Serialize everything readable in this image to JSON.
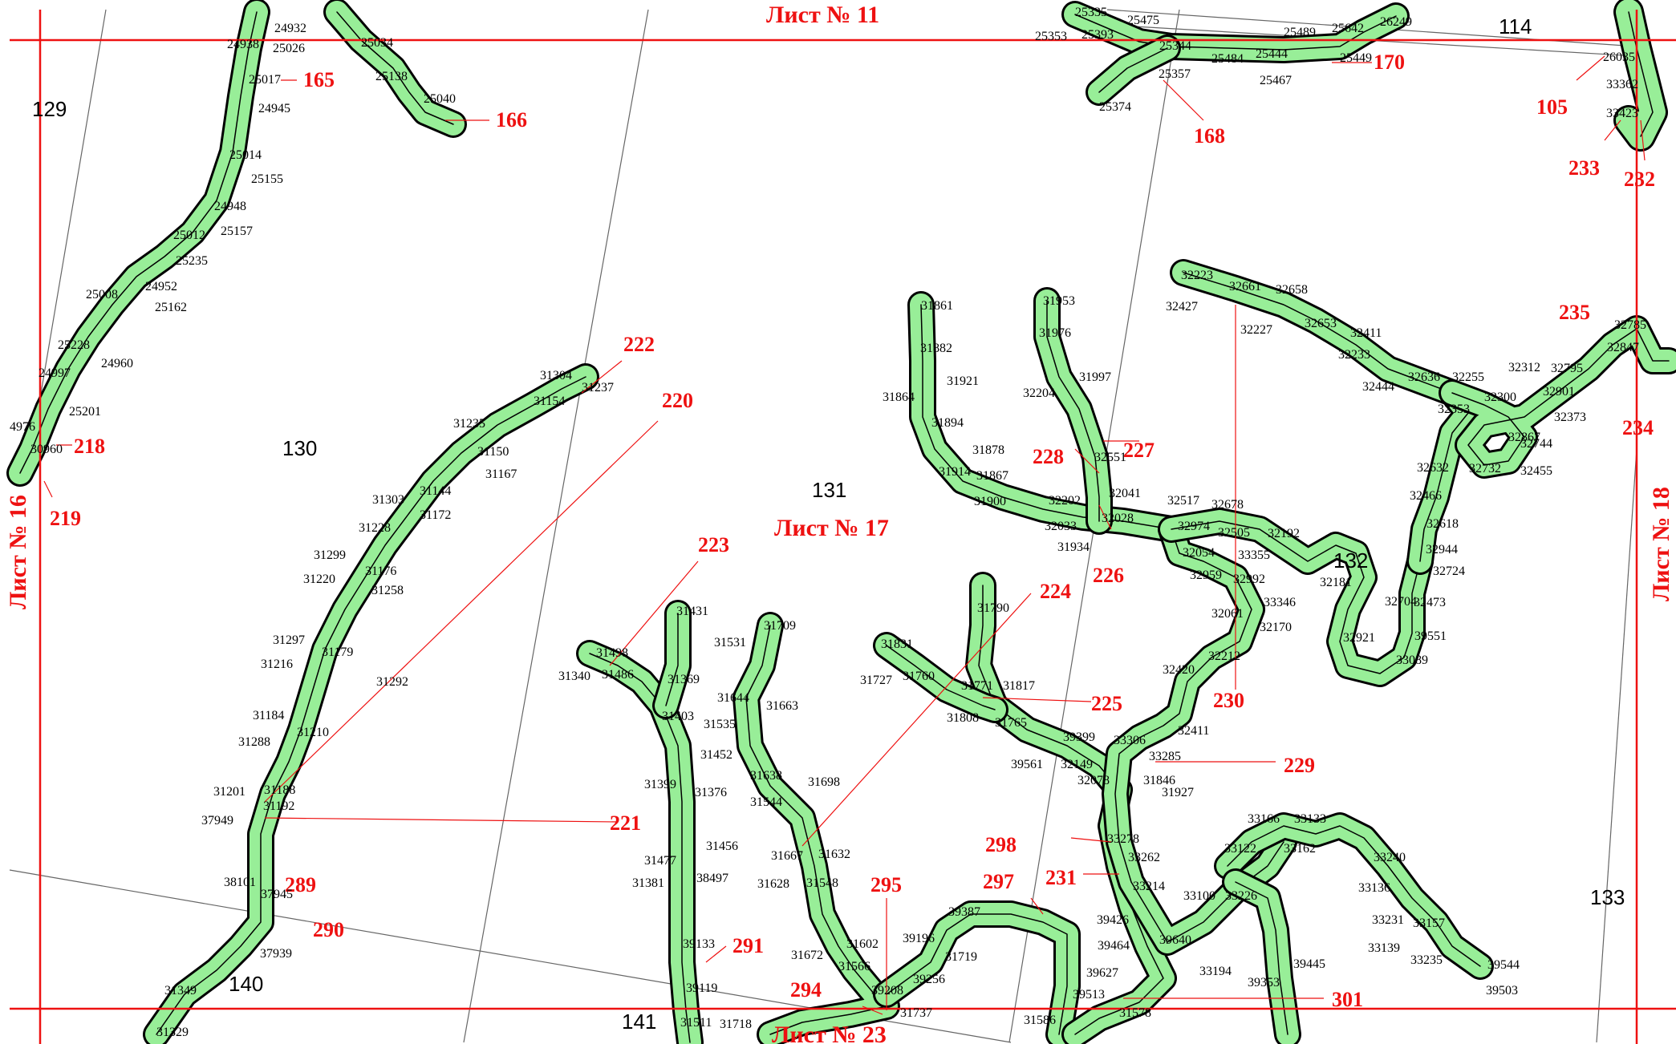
{
  "sheets": {
    "top": "Лист № 11",
    "center": "Лист № 17",
    "left": "Лист № 16",
    "right": "Лист № 18",
    "bottom": "Лист № 23"
  },
  "blocks": [
    "129",
    "130",
    "131",
    "132",
    "133",
    "114",
    "140",
    "141"
  ],
  "plot_labels": [
    "165",
    "166",
    "168",
    "170",
    "105",
    "233",
    "232",
    "218",
    "219",
    "222",
    "220",
    "221",
    "223",
    "224",
    "225",
    "226",
    "227",
    "228",
    "229",
    "230",
    "231",
    "234",
    "235",
    "289",
    "290",
    "291",
    "294",
    "295",
    "297",
    "298",
    "301"
  ],
  "point_numbers": [
    "24932",
    "24938",
    "25026",
    "25034",
    "25017",
    "25138",
    "25040",
    "24945",
    "25014",
    "25155",
    "24948",
    "25012",
    "25157",
    "25235",
    "25008",
    "24952",
    "25162",
    "25228",
    "24960",
    "24997",
    "25201",
    "4976",
    "30960",
    "25335",
    "25475",
    "25353",
    "25393",
    "25344",
    "25357",
    "25374",
    "25484",
    "25444",
    "25467",
    "25489",
    "25642",
    "26249",
    "25449",
    "26035",
    "33362",
    "33423",
    "31304",
    "31237",
    "31154",
    "31235",
    "31150",
    "31167",
    "31303",
    "31144",
    "31172",
    "31228",
    "31299",
    "31176",
    "31220",
    "31258",
    "31297",
    "31179",
    "31216",
    "31292",
    "31184",
    "31210",
    "31288",
    "31188",
    "31201",
    "31192",
    "37949",
    "38101",
    "37945",
    "37939",
    "31349",
    "31329",
    "31431",
    "31498",
    "31340",
    "31486",
    "31369",
    "31403",
    "31452",
    "31399",
    "31376",
    "31477",
    "31456",
    "31381",
    "38497",
    "39133",
    "39119",
    "31511",
    "31718",
    "31709",
    "31531",
    "31644",
    "31663",
    "31535",
    "31638",
    "31698",
    "31544",
    "31667",
    "31632",
    "31628",
    "31548",
    "31672",
    "31602",
    "31566",
    "39196",
    "39256",
    "39208",
    "31737",
    "31719",
    "31790",
    "31831",
    "31727",
    "31760",
    "31771",
    "31817",
    "31808",
    "31765",
    "39561",
    "39399",
    "32149",
    "32078",
    "33306",
    "32411",
    "33285",
    "31846",
    "31927",
    "31861",
    "31882",
    "31921",
    "31864",
    "31894",
    "31878",
    "31914",
    "31867",
    "31900",
    "32202",
    "32033",
    "31934",
    "32028",
    "31953",
    "31976",
    "31997",
    "32204",
    "32551",
    "32041",
    "32517",
    "32974",
    "32678",
    "32505",
    "32192",
    "33355",
    "32054",
    "32959",
    "32992",
    "32181",
    "33346",
    "32061",
    "32170",
    "32212",
    "32420",
    "32223",
    "32661",
    "32658",
    "32427",
    "32227",
    "32653",
    "32411",
    "32233",
    "32444",
    "32636",
    "32255",
    "32353",
    "32300",
    "32312",
    "32795",
    "32785",
    "32847",
    "32901",
    "32373",
    "32867",
    "32744",
    "32455",
    "32632",
    "32732",
    "32466",
    "32618",
    "32944",
    "32724",
    "32704",
    "32473",
    "32921",
    "39551",
    "33089",
    "33278",
    "33262",
    "33214",
    "33100",
    "33226",
    "33122",
    "33166",
    "33133",
    "33162",
    "33240",
    "33136",
    "33231",
    "33157",
    "33139",
    "33235",
    "39544",
    "39503",
    "39426",
    "39464",
    "39640",
    "39627",
    "33194",
    "39353",
    "39445",
    "39513",
    "31578",
    "31586",
    "39387"
  ]
}
